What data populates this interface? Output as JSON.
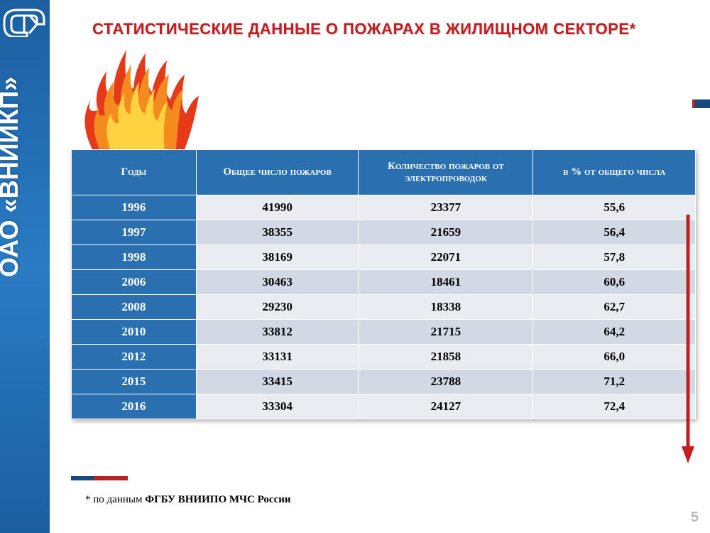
{
  "sidebar": {
    "org_text": "ОАО «ВНИИКП»"
  },
  "title": "СТАТИСТИЧЕСКИЕ ДАННЫЕ О ПОЖАРАХ В ЖИЛИЩНОМ СЕКТОРЕ*",
  "footnote_prefix": "* по данным ",
  "footnote_bold": "ФГБУ ВНИИПО МЧС России",
  "page_number": "5",
  "table": {
    "columns": [
      "Годы",
      "Общее число пожаров",
      "Количество пожаров от электропроводок",
      "в % от общего числа"
    ],
    "col_widths_pct": [
      20,
      26,
      28,
      26
    ],
    "header_bg": "#2a6fb0",
    "header_fg": "#ffffff",
    "row_even_bg": "#e9edf2",
    "row_odd_bg": "#d0d9e4",
    "year_col_bg": "#2a6fb0",
    "year_col_fg": "#ffffff",
    "font_size_pt": 13,
    "rows": [
      [
        "1996",
        "41990",
        "23377",
        "55,6"
      ],
      [
        "1997",
        "38355",
        "21659",
        "56,4"
      ],
      [
        "1998",
        "38169",
        "22071",
        "57,8"
      ],
      [
        "2006",
        "30463",
        "18461",
        "60,6"
      ],
      [
        "2008",
        "29230",
        "18338",
        "62,7"
      ],
      [
        "2010",
        "33812",
        "21715",
        "64,2"
      ],
      [
        "2012",
        "33131",
        "21858",
        "66,0"
      ],
      [
        "2015",
        "33415",
        "23788",
        "71,2"
      ],
      [
        "2016",
        "33304",
        "24127",
        "72,4"
      ]
    ]
  },
  "arrow": {
    "color": "#c51e21"
  },
  "flame": {
    "colors": {
      "outer": "#e6391a",
      "mid": "#f58a1f",
      "inner": "#ffd23f"
    }
  },
  "logo": {
    "stroke": "#ffffff",
    "accent": "#0b2a4a"
  },
  "palette": {
    "title_color": "#c51e21",
    "sidebar_grad_top": "#1b5fa0",
    "sidebar_grad_mid": "#2a7bc4",
    "background": "#ffffff"
  }
}
